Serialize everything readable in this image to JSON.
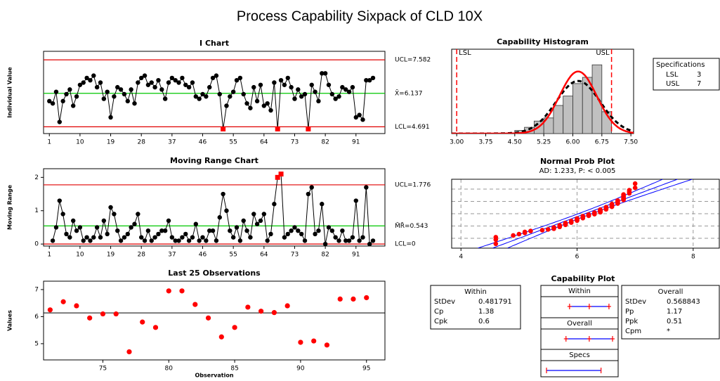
{
  "title": "Process Capability Sixpack of CLD 10X",
  "chart_data": [
    {
      "type": "control",
      "title": "I Chart",
      "y_label": "Individual Value",
      "color": "#000000",
      "x": [
        1,
        2,
        3,
        4,
        5,
        6,
        7,
        8,
        9,
        10,
        11,
        12,
        13,
        14,
        15,
        16,
        17,
        18,
        19,
        20,
        21,
        22,
        23,
        24,
        25,
        26,
        27,
        28,
        29,
        30,
        31,
        32,
        33,
        34,
        35,
        36,
        37,
        38,
        39,
        40,
        41,
        42,
        43,
        44,
        45,
        46,
        47,
        48,
        49,
        50,
        51,
        52,
        53,
        54,
        55,
        56,
        57,
        58,
        59,
        60,
        61,
        62,
        63,
        64,
        65,
        66,
        67,
        68,
        69,
        70,
        71,
        72,
        73,
        74,
        75,
        76,
        77,
        78,
        79,
        80,
        81,
        82,
        83,
        84,
        85,
        86,
        87,
        88,
        89,
        90,
        91,
        92,
        93,
        94,
        95,
        96
      ],
      "values": [
        5.8,
        5.7,
        6.2,
        4.9,
        5.8,
        6.1,
        6.3,
        5.6,
        6.0,
        6.5,
        6.6,
        6.8,
        6.7,
        6.9,
        6.4,
        6.6,
        5.9,
        6.2,
        5.1,
        6.0,
        6.4,
        6.3,
        6.1,
        5.8,
        6.3,
        5.7,
        6.6,
        6.8,
        6.9,
        6.5,
        6.6,
        6.4,
        6.7,
        6.3,
        5.9,
        6.6,
        6.8,
        6.7,
        6.6,
        6.8,
        6.5,
        6.4,
        6.6,
        6.0,
        5.9,
        6.1,
        6.0,
        6.4,
        6.8,
        6.9,
        6.1,
        4.6,
        5.6,
        6.0,
        6.2,
        6.7,
        6.8,
        6.1,
        5.7,
        5.5,
        6.4,
        5.8,
        6.5,
        5.6,
        5.7,
        5.4,
        6.6,
        4.6,
        6.7,
        6.5,
        6.8,
        6.4,
        5.9,
        6.3,
        6.0,
        6.1,
        4.6,
        6.5,
        6.2,
        5.8,
        7.0,
        7.0,
        6.5,
        6.1,
        5.9,
        6.0,
        6.4,
        6.3,
        6.2,
        6.4,
        5.1,
        5.2,
        5.0,
        6.7,
        6.7,
        6.8
      ],
      "xlim": [
        -0.7,
        99.5
      ],
      "xticks": [
        1,
        10,
        19,
        28,
        37,
        46,
        55,
        64,
        73,
        82,
        91
      ],
      "ylim": [
        4.4,
        7.95
      ],
      "control_lines": [
        {
          "label": "UCL=7.582",
          "value": 7.582,
          "color": "#e00000"
        },
        {
          "label": "X̄=6.137",
          "value": 6.137,
          "color": "#00c800"
        },
        {
          "label": "LCL=4.691",
          "value": 4.691,
          "color": "#e00000"
        }
      ],
      "flag_color": "#ff0000"
    },
    {
      "type": "control",
      "title": "Moving Range Chart",
      "y_label": "Moving Range",
      "color": "#000000",
      "x": [
        2,
        3,
        4,
        5,
        6,
        7,
        8,
        9,
        10,
        11,
        12,
        13,
        14,
        15,
        16,
        17,
        18,
        19,
        20,
        21,
        22,
        23,
        24,
        25,
        26,
        27,
        28,
        29,
        30,
        31,
        32,
        33,
        34,
        35,
        36,
        37,
        38,
        39,
        40,
        41,
        42,
        43,
        44,
        45,
        46,
        47,
        48,
        49,
        50,
        51,
        52,
        53,
        54,
        55,
        56,
        57,
        58,
        59,
        60,
        61,
        62,
        63,
        64,
        65,
        66,
        67,
        68,
        69,
        70,
        71,
        72,
        73,
        74,
        75,
        76,
        77,
        78,
        79,
        80,
        81,
        82,
        83,
        84,
        85,
        86,
        87,
        88,
        89,
        90,
        91,
        92,
        93,
        94,
        95,
        96
      ],
      "values": [
        0.1,
        0.5,
        1.3,
        0.9,
        0.3,
        0.2,
        0.7,
        0.4,
        0.5,
        0.1,
        0.2,
        0.1,
        0.2,
        0.5,
        0.2,
        0.7,
        0.3,
        1.1,
        0.9,
        0.4,
        0.1,
        0.2,
        0.3,
        0.5,
        0.6,
        0.9,
        0.2,
        0.1,
        0.4,
        0.1,
        0.2,
        0.3,
        0.4,
        0.4,
        0.7,
        0.2,
        0.1,
        0.1,
        0.2,
        0.3,
        0.1,
        0.2,
        0.6,
        0.1,
        0.2,
        0.1,
        0.4,
        0.4,
        0.1,
        0.8,
        1.5,
        1.0,
        0.4,
        0.2,
        0.5,
        0.1,
        0.7,
        0.4,
        0.2,
        0.9,
        0.6,
        0.7,
        0.9,
        0.1,
        0.3,
        1.2,
        2.0,
        2.1,
        0.2,
        0.3,
        0.4,
        0.5,
        0.4,
        0.3,
        0.1,
        1.5,
        1.7,
        0.3,
        0.4,
        1.2,
        0.0,
        0.5,
        0.4,
        0.2,
        0.1,
        0.4,
        0.1,
        0.1,
        0.2,
        1.3,
        0.1,
        0.2,
        1.7,
        0.0,
        0.1
      ],
      "xlim": [
        -0.7,
        99.5
      ],
      "xticks": [
        1,
        10,
        19,
        28,
        37,
        46,
        55,
        64,
        73,
        82,
        91
      ],
      "ylim": [
        -0.06,
        2.26
      ],
      "yticks": [
        0,
        1,
        2
      ],
      "control_lines": [
        {
          "label": "UCL=1.776",
          "value": 1.776,
          "color": "#e00000"
        },
        {
          "label": "M̄R̄=0.543",
          "value": 0.543,
          "color": "#00c800"
        },
        {
          "label": "LCL=0",
          "value": 0,
          "color": "#e00000"
        }
      ],
      "flag_color": "#ff0000"
    },
    {
      "type": "scatter",
      "title": "Last 25 Observations",
      "x_label": "Observation",
      "y_label": "Values",
      "color": "#ff0000",
      "x": [
        71,
        72,
        73,
        74,
        75,
        76,
        77,
        78,
        79,
        80,
        81,
        82,
        83,
        84,
        85,
        86,
        87,
        88,
        89,
        90,
        91,
        92,
        93,
        94,
        95
      ],
      "values": [
        6.25,
        6.55,
        6.4,
        5.95,
        6.1,
        6.1,
        4.7,
        5.8,
        5.6,
        6.95,
        6.95,
        6.45,
        5.95,
        5.25,
        5.6,
        6.35,
        6.2,
        6.15,
        6.4,
        5.05,
        5.1,
        4.95,
        6.65,
        6.65,
        6.7
      ],
      "mean_line": 6.137,
      "xlim": [
        70.5,
        96.4
      ],
      "xticks": [
        75,
        80,
        85,
        90,
        95
      ],
      "ylim": [
        4.4,
        7.31
      ],
      "yticks": [
        5,
        6,
        7
      ]
    },
    {
      "type": "histogram",
      "title": "Capability Histogram",
      "color": "#c0c0c0",
      "bins": [
        4.5,
        4.75,
        5.0,
        5.25,
        5.5,
        5.75,
        6.0,
        6.25,
        6.5,
        6.75,
        7.0
      ],
      "counts": [
        1,
        2,
        4,
        5,
        9,
        12,
        16,
        18,
        22,
        7
      ],
      "xlim": [
        2.87,
        7.57
      ],
      "xticks": [
        {
          "value": 3,
          "label": "3.00"
        },
        {
          "value": 3.75,
          "label": "3.75"
        },
        {
          "value": 4.5,
          "label": "4.50"
        },
        {
          "value": 5.25,
          "label": "5.25"
        },
        {
          "value": 6,
          "label": "6.00"
        },
        {
          "value": 6.75,
          "label": "6.75"
        },
        {
          "value": 7.5,
          "label": "7.50"
        }
      ],
      "ylim": [
        0,
        27
      ],
      "within_color": "#ff0000",
      "overall_color": "#000000",
      "spec_color": "#ff0000",
      "specifications": {
        "title": "Specifications",
        "limits": [
          {
            "name": "LSL",
            "value": 3
          },
          {
            "name": "USL",
            "value": 7
          }
        ]
      }
    },
    {
      "type": "probability",
      "title": "Normal Prob Plot",
      "subtitle": "AD: 1.233, P: < 0.005",
      "color": "#ff0000",
      "line_color": "#0000ff",
      "xlim": [
        3.84,
        8.45
      ],
      "xticks": [
        4,
        6,
        8
      ],
      "grid": true
    },
    {
      "type": "capability",
      "title": "Capability Plot",
      "line_color": "#0000ff",
      "mark_color": "#ff0000",
      "within": {
        "title": "Within",
        "stats": [
          {
            "name": "StDev",
            "value": 0.481791
          },
          {
            "name": "Cp",
            "value": 1.38
          },
          {
            "name": "Cpk",
            "value": 0.6
          }
        ]
      },
      "overall": {
        "title": "Overall",
        "stats": [
          {
            "name": "StDev",
            "value": 0.568843
          },
          {
            "name": "Pp",
            "value": 1.17
          },
          {
            "name": "Ppk",
            "value": 0.51
          },
          {
            "name": "Cpm",
            "value": "*"
          }
        ]
      },
      "rows": [
        "Within",
        "Overall",
        "Specs"
      ]
    }
  ]
}
